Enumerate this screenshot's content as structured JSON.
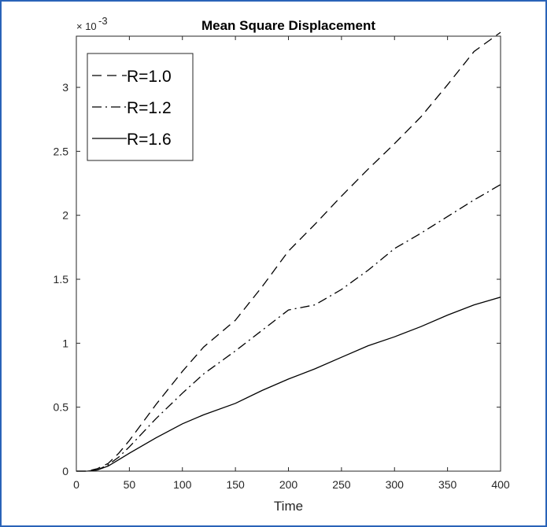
{
  "chart_data": {
    "type": "line",
    "title": "Mean Square Displacement",
    "xlabel": "Time",
    "ylabel": "",
    "y_exponent_label": "× 10",
    "y_exponent_power": "-3",
    "xlim": [
      0,
      400
    ],
    "ylim": [
      0,
      3.4
    ],
    "x_ticks": [
      0,
      50,
      100,
      150,
      200,
      250,
      300,
      350,
      400
    ],
    "x_tick_labels": [
      "0",
      "50",
      "100",
      "150",
      "200",
      "250",
      "300",
      "350",
      "400"
    ],
    "y_ticks": [
      0,
      0.5,
      1,
      1.5,
      2,
      2.5,
      3
    ],
    "y_tick_labels": [
      "0",
      "0.5",
      "1",
      "1.5",
      "2",
      "2.5",
      "3"
    ],
    "grid": false,
    "legend_position": "top-left",
    "x": [
      0,
      10,
      20,
      30,
      40,
      50,
      75,
      100,
      120,
      150,
      175,
      200,
      225,
      250,
      275,
      300,
      325,
      350,
      375,
      400
    ],
    "series": [
      {
        "name": "R=1.0",
        "style": "dashed",
        "color": "#000000",
        "values": [
          0,
          0,
          0.02,
          0.06,
          0.14,
          0.24,
          0.52,
          0.78,
          0.97,
          1.18,
          1.44,
          1.72,
          1.93,
          2.15,
          2.36,
          2.56,
          2.77,
          3.02,
          3.28,
          3.43
        ]
      },
      {
        "name": "R=1.2",
        "style": "dash-dot",
        "color": "#000000",
        "values": [
          0,
          0,
          0.01,
          0.05,
          0.11,
          0.19,
          0.41,
          0.61,
          0.76,
          0.94,
          1.1,
          1.26,
          1.3,
          1.42,
          1.57,
          1.74,
          1.86,
          1.99,
          2.12,
          2.24
        ]
      },
      {
        "name": "R=1.6",
        "style": "solid",
        "color": "#000000",
        "values": [
          0,
          0,
          0.01,
          0.04,
          0.09,
          0.14,
          0.26,
          0.37,
          0.44,
          0.53,
          0.63,
          0.72,
          0.8,
          0.89,
          0.98,
          1.05,
          1.13,
          1.22,
          1.3,
          1.36
        ]
      }
    ]
  }
}
